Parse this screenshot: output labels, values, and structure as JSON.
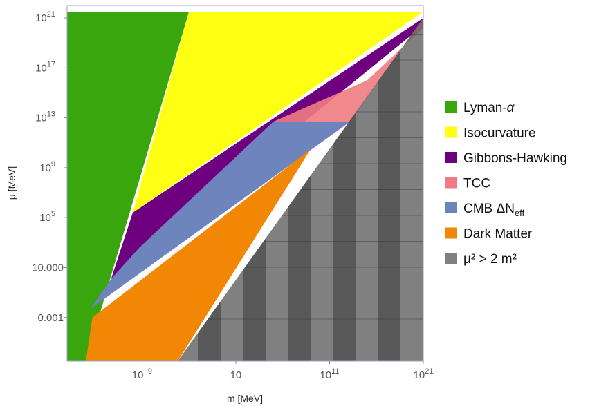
{
  "chart_data": {
    "type": "area",
    "title": "",
    "xlabel": "m [MeV]",
    "ylabel": "μ [MeV]",
    "x_scale": "log10",
    "y_scale": "log10",
    "xlim_log10": [
      -17,
      21
    ],
    "ylim_log10": [
      -6.5,
      22
    ],
    "x_ticks": [
      {
        "log10": -9,
        "base": "10",
        "exp": "−9"
      },
      {
        "log10": 1,
        "base": "10",
        "exp": ""
      },
      {
        "log10": 11,
        "base": "10",
        "exp": "11"
      },
      {
        "log10": 21,
        "base": "10",
        "exp": "21"
      }
    ],
    "y_ticks": [
      {
        "log10": -3,
        "base": "0.001",
        "exp": ""
      },
      {
        "log10": 1,
        "base": "10.000",
        "exp": ""
      },
      {
        "log10": 5,
        "base": "10",
        "exp": "5"
      },
      {
        "log10": 9,
        "base": "10",
        "exp": "9"
      },
      {
        "log10": 13,
        "base": "10",
        "exp": "13"
      },
      {
        "log10": 17,
        "base": "10",
        "exp": "17"
      },
      {
        "log10": 21,
        "base": "10",
        "exp": "21"
      }
    ],
    "legend_position": "right",
    "series": [
      {
        "name": "Lyman-α",
        "color": "#3aa60e",
        "polygon_log10": [
          [
            -17,
            -6.5
          ],
          [
            -15,
            -6.5
          ],
          [
            -4,
            21.5
          ],
          [
            -17,
            21.5
          ]
        ]
      },
      {
        "name": "Isocurvature",
        "color": "#ffff14",
        "polygon_log10": [
          [
            -4,
            21.5
          ],
          [
            21,
            21.5
          ],
          [
            -10,
            5.4
          ]
        ]
      },
      {
        "name": "Gibbons-Hawking",
        "color": "#6e0080",
        "polygon_log10": [
          [
            -10,
            5.4
          ],
          [
            21,
            21
          ],
          [
            21,
            20.4
          ],
          [
            -12.3,
            0.1
          ]
        ]
      },
      {
        "name": "TCC",
        "color": "#f07b82",
        "opacity": 0.9,
        "polygon_log10": [
          [
            5,
            12.7
          ],
          [
            13.2,
            12.7
          ],
          [
            21,
            21
          ],
          [
            21,
            20.2
          ],
          [
            15,
            16
          ]
        ]
      },
      {
        "name": "CMB ΔN_eff",
        "color": "#6d84bd",
        "polygon_log10": [
          [
            -12.3,
            0.1
          ],
          [
            -9.3,
            2.6
          ],
          [
            5,
            12.7
          ],
          [
            13.2,
            12.7
          ],
          [
            -14.5,
            -2.3
          ]
        ]
      },
      {
        "name": "Dark Matter",
        "color": "#f28705",
        "polygon_log10": [
          [
            -15,
            -6.5
          ],
          [
            -14.3,
            -3
          ],
          [
            9,
            10.5
          ],
          [
            -5.2,
            -6.5
          ]
        ]
      },
      {
        "name": "μ² > 2 m²",
        "color": "#606060",
        "opacity": 0.8,
        "polygon_log10": [
          [
            -5.2,
            -6.5
          ],
          [
            21,
            21
          ],
          [
            21,
            -6.5
          ]
        ]
      }
    ],
    "legend": [
      {
        "label": "Lyman-",
        "greek": "α",
        "sub": "",
        "sup": "",
        "color": "#3aa60e"
      },
      {
        "label": "Isocurvature",
        "greek": "",
        "sub": "",
        "sup": "",
        "color": "#ffff14"
      },
      {
        "label": "Gibbons-Hawking",
        "greek": "",
        "sub": "",
        "sup": "",
        "color": "#6e0080"
      },
      {
        "label": "TCC",
        "greek": "",
        "sub": "",
        "sup": "",
        "color": "#f07b82"
      },
      {
        "label": "CMB ΔN",
        "greek": "",
        "sub": "eff",
        "sup": "",
        "color": "#6d84bd"
      },
      {
        "label": "Dark Matter",
        "greek": "",
        "sub": "",
        "sup": "",
        "color": "#f28705"
      },
      {
        "label": "μ² > 2 m²",
        "greek": "",
        "sub": "",
        "sup": "",
        "color": "#808080"
      }
    ]
  }
}
